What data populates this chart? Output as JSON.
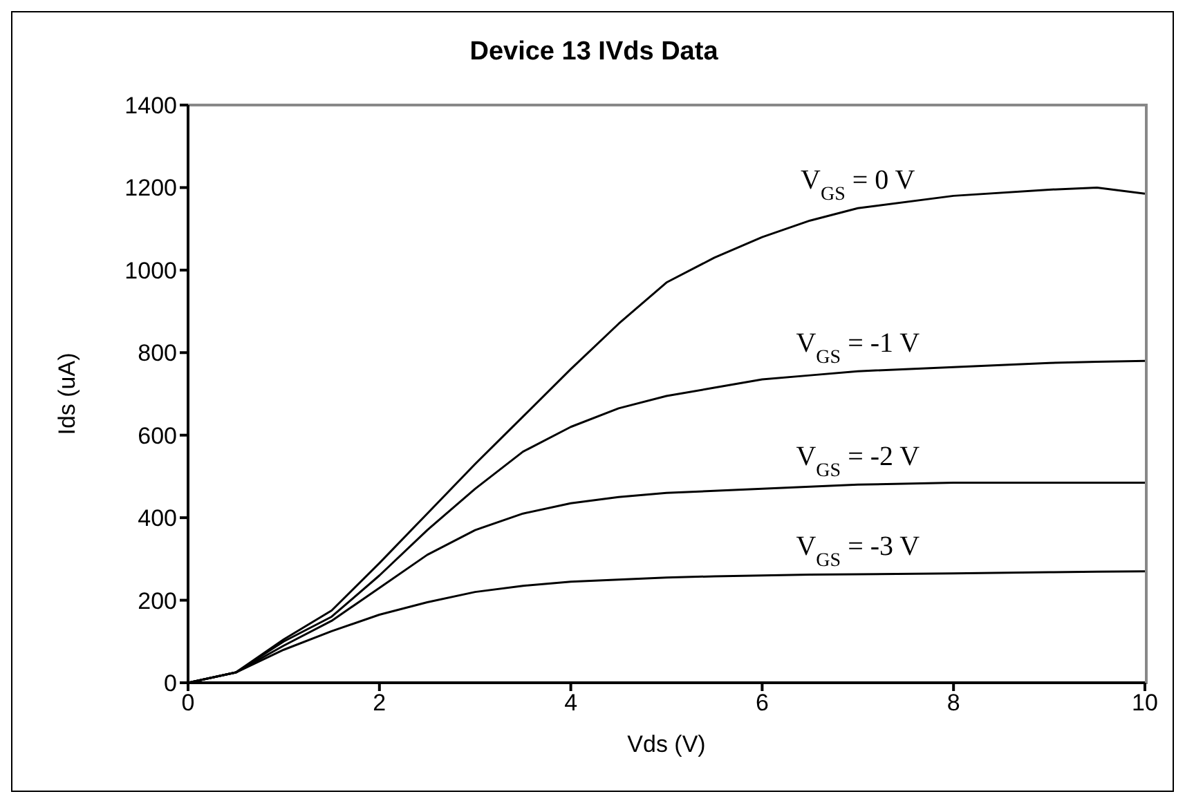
{
  "chart_data": {
    "type": "line",
    "title": "Device 13 IVds Data",
    "xlabel": "Vds (V)",
    "ylabel": "Ids (uA)",
    "xlim": [
      0,
      10
    ],
    "xticks": [
      0,
      2,
      4,
      6,
      8,
      10
    ],
    "ylim": [
      0,
      1400
    ],
    "yticks": [
      0,
      200,
      400,
      600,
      800,
      1000,
      1200,
      1400
    ],
    "grid": false,
    "legend": false,
    "marker": "none",
    "line_style": "solid",
    "x": [
      0,
      0.5,
      1,
      1.5,
      2,
      2.5,
      3,
      3.5,
      4,
      4.5,
      5,
      5.5,
      6,
      6.5,
      7,
      8,
      9,
      9.5,
      10
    ],
    "series": [
      {
        "name": "V$_{GS}$ = 0 V",
        "color": "#000000",
        "values": [
          0,
          25,
          105,
          175,
          290,
          410,
          530,
          645,
          760,
          870,
          970,
          1030,
          1080,
          1120,
          1150,
          1180,
          1195,
          1200,
          1185
        ]
      },
      {
        "name": "V$_{GS}$ = -1 V",
        "color": "#000000",
        "values": [
          0,
          25,
          100,
          160,
          260,
          370,
          470,
          560,
          620,
          665,
          695,
          715,
          735,
          745,
          755,
          765,
          775,
          778,
          780
        ]
      },
      {
        "name": "V$_{GS}$ = -2 V",
        "color": "#000000",
        "values": [
          0,
          25,
          90,
          150,
          230,
          310,
          370,
          410,
          435,
          450,
          460,
          465,
          470,
          475,
          480,
          485,
          485,
          485,
          485
        ]
      },
      {
        "name": "V$_{GS}$ = -3 V",
        "color": "#000000",
        "values": [
          0,
          25,
          80,
          125,
          165,
          195,
          220,
          235,
          245,
          250,
          255,
          258,
          260,
          262,
          263,
          265,
          268,
          269,
          270
        ]
      }
    ]
  }
}
